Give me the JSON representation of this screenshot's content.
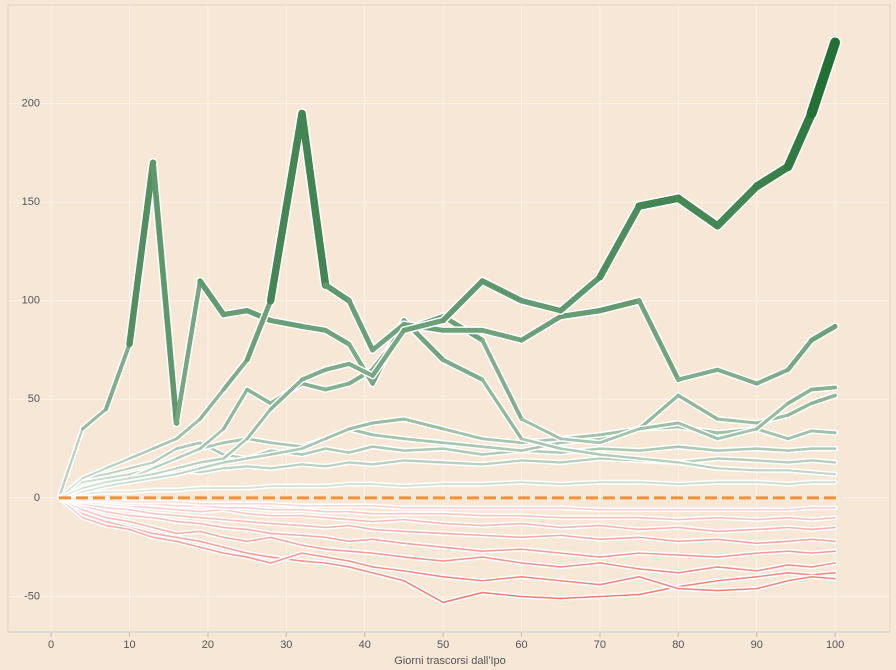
{
  "chart_data": {
    "type": "line",
    "x_label": "Giorni trascorsi dall'Ipo",
    "x": [
      1,
      4,
      7,
      10,
      13,
      16,
      19,
      22,
      25,
      28,
      32,
      35,
      38,
      41,
      45,
      50,
      55,
      60,
      65,
      70,
      75,
      80,
      85,
      90,
      94,
      97,
      100
    ],
    "xlim": [
      -5.5,
      107
    ],
    "xticks": [
      0,
      10,
      20,
      30,
      40,
      50,
      60,
      70,
      80,
      90,
      100
    ],
    "ylim": [
      -68,
      250
    ],
    "yticks": [
      -50,
      0,
      50,
      100,
      150,
      200
    ],
    "grid": true,
    "positive_color": "#1b6b2e",
    "negative_color": "#f07b74",
    "reference_line": {
      "value": 0,
      "color": "#f0923a"
    },
    "series": [
      {
        "values": [
          0,
          -8,
          -12,
          -15,
          -18,
          -20,
          -22,
          -25,
          -28,
          -30,
          -32,
          -33,
          -35,
          -38,
          -42,
          -53,
          -48,
          -50,
          -51,
          -50,
          -49,
          -45,
          -42,
          -40,
          -38,
          -39,
          -38
        ]
      },
      {
        "values": [
          0,
          -10,
          -14,
          -16,
          -20,
          -22,
          -25,
          -28,
          -30,
          -33,
          -28,
          -30,
          -32,
          -35,
          -37,
          -40,
          -42,
          -40,
          -42,
          -44,
          -40,
          -46,
          -47,
          -46,
          -42,
          -40,
          -41
        ]
      },
      {
        "values": [
          0,
          -6,
          -10,
          -12,
          -15,
          -18,
          -17,
          -20,
          -22,
          -20,
          -24,
          -26,
          -27,
          -28,
          -30,
          -32,
          -30,
          -33,
          -35,
          -33,
          -36,
          -38,
          -35,
          -37,
          -34,
          -35,
          -33
        ]
      },
      {
        "values": [
          0,
          -4,
          -7,
          -9,
          -10,
          -12,
          -13,
          -15,
          -16,
          -18,
          -19,
          -20,
          -22,
          -21,
          -23,
          -25,
          -27,
          -26,
          -28,
          -30,
          -28,
          -29,
          -30,
          -28,
          -27,
          -28,
          -27
        ]
      },
      {
        "values": [
          0,
          -3,
          -5,
          -6,
          -8,
          -9,
          -10,
          -11,
          -12,
          -13,
          -14,
          -15,
          -14,
          -16,
          -17,
          -18,
          -19,
          -20,
          -19,
          -21,
          -20,
          -22,
          -21,
          -23,
          -22,
          -21,
          -22
        ]
      },
      {
        "values": [
          0,
          -2,
          -3,
          -4,
          -5,
          -6,
          -7,
          -6,
          -8,
          -9,
          -9,
          -10,
          -11,
          -12,
          -11,
          -13,
          -14,
          -13,
          -15,
          -14,
          -16,
          -15,
          -17,
          -16,
          -15,
          -16,
          -15
        ]
      },
      {
        "values": [
          0,
          -1,
          -2,
          -3,
          -3,
          -4,
          -4,
          -5,
          -5,
          -6,
          -6,
          -7,
          -7,
          -8,
          -8,
          -8,
          -9,
          -9,
          -10,
          -10,
          -10,
          -11,
          -10,
          -11,
          -10,
          -11,
          -10
        ]
      },
      {
        "values": [
          0,
          -1,
          -1,
          -2,
          -2,
          -2,
          -3,
          -3,
          -3,
          -3,
          -4,
          -4,
          -4,
          -4,
          -5,
          -5,
          -5,
          -5,
          -5,
          -6,
          -6,
          -6,
          -6,
          -6,
          -6,
          -5,
          -5
        ]
      },
      {
        "values": [
          0,
          2,
          3,
          3,
          4,
          4,
          5,
          5,
          5,
          6,
          6,
          6,
          7,
          7,
          6,
          7,
          7,
          8,
          7,
          8,
          8,
          7,
          8,
          8,
          7,
          8,
          8
        ]
      },
      {
        "values": [
          0,
          5,
          8,
          10,
          12,
          14,
          13,
          15,
          16,
          15,
          17,
          16,
          18,
          17,
          19,
          18,
          17,
          19,
          18,
          20,
          19,
          18,
          20,
          19,
          18,
          19,
          18
        ]
      },
      {
        "values": [
          0,
          10,
          12,
          15,
          18,
          25,
          28,
          22,
          20,
          24,
          22,
          25,
          23,
          26,
          24,
          25,
          22,
          24,
          23,
          25,
          24,
          26,
          24,
          25,
          24,
          25,
          25
        ]
      },
      {
        "values": [
          0,
          8,
          10,
          12,
          15,
          20,
          25,
          28,
          30,
          28,
          26,
          30,
          35,
          32,
          30,
          28,
          26,
          24,
          28,
          30,
          35,
          36,
          33,
          35,
          30,
          34,
          33
        ]
      },
      {
        "values": [
          0,
          3,
          6,
          8,
          10,
          12,
          15,
          18,
          20,
          22,
          25,
          30,
          35,
          38,
          40,
          35,
          30,
          28,
          30,
          32,
          35,
          52,
          40,
          38,
          42,
          48,
          52
        ]
      },
      {
        "values": [
          0,
          5,
          8,
          10,
          15,
          20,
          25,
          35,
          55,
          48,
          58,
          55,
          58,
          65,
          85,
          92,
          80,
          40,
          30,
          28,
          35,
          38,
          30,
          35,
          48,
          55,
          56
        ]
      },
      {
        "values": [
          0,
          35,
          45,
          78,
          170,
          38,
          110,
          93,
          95,
          90,
          87,
          85,
          78,
          58,
          90,
          70,
          60,
          30,
          25,
          22,
          20,
          18,
          15,
          14,
          14,
          13,
          12
        ]
      },
      {
        "values": [
          0,
          10,
          15,
          20,
          25,
          30,
          40,
          55,
          70,
          100,
          195,
          108,
          100,
          75,
          88,
          85,
          85,
          80,
          92,
          95,
          100,
          60,
          65,
          58,
          65,
          80,
          87
        ]
      },
      {
        "values": [
          0,
          5,
          8,
          10,
          12,
          15,
          18,
          20,
          30,
          45,
          60,
          65,
          68,
          62,
          85,
          90,
          110,
          100,
          95,
          112,
          148,
          152,
          138,
          158,
          168,
          195,
          231
        ]
      }
    ]
  }
}
